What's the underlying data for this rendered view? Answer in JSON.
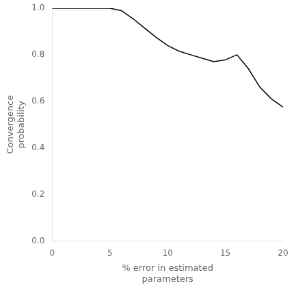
{
  "chart_data": {
    "type": "line",
    "x": [
      0,
      1,
      2,
      3,
      4,
      5,
      6,
      7,
      8,
      9,
      10,
      11,
      12,
      13,
      14,
      15,
      16,
      17,
      18,
      19,
      20
    ],
    "values": [
      1.0,
      1.0,
      1.0,
      1.0,
      1.0,
      1.0,
      0.99,
      0.955,
      0.915,
      0.875,
      0.84,
      0.815,
      0.8,
      0.785,
      0.77,
      0.778,
      0.8,
      0.74,
      0.66,
      0.61,
      0.575
    ],
    "xlabel": "% error in estimated\nparameters",
    "ylabel": "Convergence\nprobability",
    "xlim": [
      0,
      20
    ],
    "ylim": [
      0,
      1
    ],
    "xticks": [
      0,
      5,
      10,
      15,
      20
    ],
    "yticks": [
      {
        "value": 0,
        "label": "0.0"
      },
      0.2,
      0.4,
      0.6,
      0.8,
      {
        "value": 1.0,
        "label": "1.0"
      }
    ],
    "color": "#000000",
    "grid": false
  }
}
